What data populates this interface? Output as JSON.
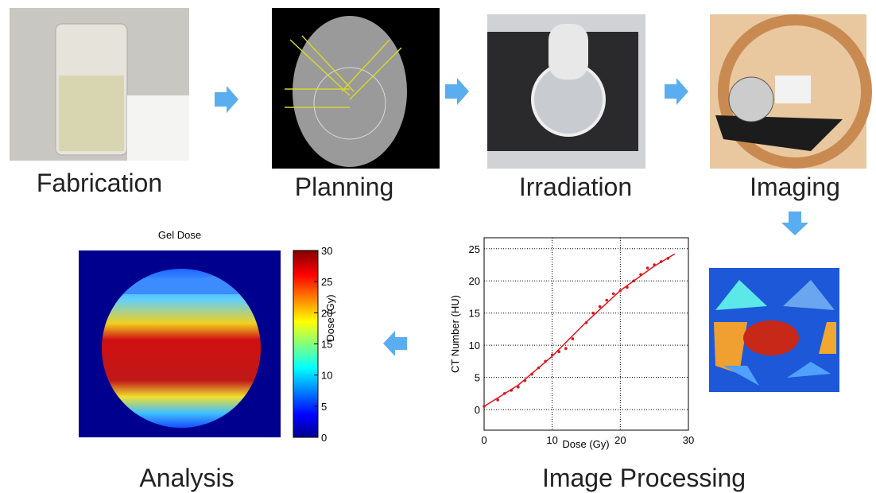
{
  "steps": [
    {
      "label": "Fabrication"
    },
    {
      "label": "Planning"
    },
    {
      "label": "Irradiation"
    },
    {
      "label": "Imaging"
    },
    {
      "label": "Image Processing"
    },
    {
      "label": "Analysis"
    }
  ],
  "calibration_plot": {
    "type": "scatter",
    "xlabel": "Dose (Gy)",
    "ylabel": "CT Number (HU)",
    "xlim": [
      0,
      30
    ],
    "ylim": [
      -3.2,
      26.7
    ],
    "xticks": [
      0,
      10,
      20,
      30
    ],
    "yticks": [
      0,
      5,
      10,
      15,
      20,
      25
    ],
    "grid": true,
    "color": "#e0151b",
    "points": {
      "x": [
        0,
        2,
        3,
        4,
        5,
        6,
        7,
        8,
        9,
        10,
        11,
        12,
        13,
        15,
        16,
        17,
        18,
        19,
        20,
        21,
        22,
        23,
        24,
        25,
        26,
        27
      ],
      "y": [
        0.5,
        1.5,
        2.5,
        3,
        3.5,
        4.5,
        5.5,
        6.5,
        7.5,
        8.5,
        9,
        9.5,
        11,
        13.5,
        15,
        16,
        17,
        18,
        18.5,
        19,
        20,
        21,
        22,
        22.5,
        23,
        23.5
      ]
    },
    "fit": {
      "x": [
        0,
        5,
        10,
        15,
        20,
        25,
        28
      ],
      "y": [
        0.5,
        3.8,
        8.3,
        13.6,
        18.5,
        22.3,
        24.2
      ]
    }
  },
  "dose_map": {
    "title": "Gel Dose",
    "colorbar_label": "Dose (Gy)",
    "clim": [
      0,
      30
    ],
    "cticks": [
      0,
      5,
      10,
      15,
      20,
      25,
      30
    ]
  }
}
